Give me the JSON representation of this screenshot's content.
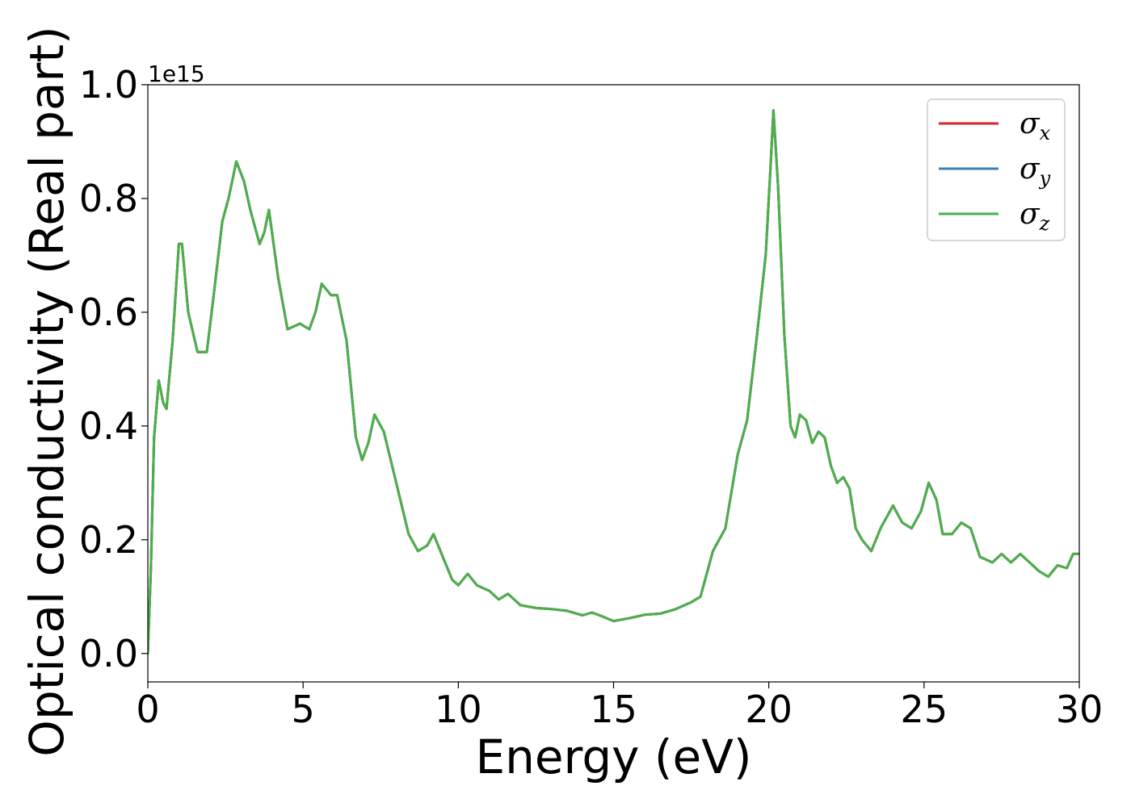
{
  "chart_data": {
    "type": "line",
    "title": "",
    "xlabel": "Energy (eV)",
    "ylabel": "Optical conductivity (Real part)",
    "y_offset_label": "1e15",
    "xlim": [
      0,
      30
    ],
    "ylim": [
      -0.05,
      1.0
    ],
    "x_ticks": [
      0,
      5,
      10,
      15,
      20,
      25,
      30
    ],
    "x_tick_labels": [
      "0",
      "5",
      "10",
      "15",
      "20",
      "25",
      "30"
    ],
    "y_ticks": [
      0.0,
      0.2,
      0.4,
      0.6,
      0.8,
      1.0
    ],
    "y_tick_labels": [
      "0.0",
      "0.2",
      "0.4",
      "0.6",
      "0.8",
      "1.0"
    ],
    "grid": false,
    "legend_position": "top-right",
    "x": [
      0,
      0.1,
      0.2,
      0.35,
      0.5,
      0.6,
      0.8,
      1.0,
      1.1,
      1.3,
      1.6,
      1.9,
      2.1,
      2.4,
      2.6,
      2.85,
      3.1,
      3.3,
      3.6,
      3.75,
      3.9,
      4.2,
      4.5,
      4.9,
      5.2,
      5.4,
      5.6,
      5.9,
      6.1,
      6.4,
      6.7,
      6.9,
      7.1,
      7.3,
      7.6,
      8.0,
      8.4,
      8.7,
      9.0,
      9.2,
      9.5,
      9.8,
      10.0,
      10.3,
      10.6,
      11.0,
      11.3,
      11.6,
      12.0,
      12.5,
      13.0,
      13.5,
      14.0,
      14.3,
      14.6,
      15.0,
      15.5,
      16.0,
      16.5,
      17.0,
      17.5,
      17.8,
      18.2,
      18.6,
      19.0,
      19.3,
      19.6,
      19.9,
      20.05,
      20.15,
      20.3,
      20.5,
      20.7,
      20.85,
      21.0,
      21.2,
      21.4,
      21.6,
      21.8,
      22.0,
      22.2,
      22.4,
      22.6,
      22.8,
      23.0,
      23.3,
      23.6,
      24.0,
      24.3,
      24.6,
      24.9,
      25.15,
      25.4,
      25.6,
      25.9,
      26.2,
      26.5,
      26.8,
      27.2,
      27.5,
      27.8,
      28.1,
      28.4,
      28.7,
      29.0,
      29.3,
      29.6,
      29.8,
      30.0
    ],
    "series": [
      {
        "name": "σx",
        "color": "#d62728",
        "values": [
          0.0,
          0.15,
          0.38,
          0.48,
          0.44,
          0.43,
          0.55,
          0.72,
          0.72,
          0.6,
          0.53,
          0.53,
          0.62,
          0.76,
          0.8,
          0.865,
          0.83,
          0.78,
          0.72,
          0.74,
          0.78,
          0.66,
          0.57,
          0.58,
          0.57,
          0.6,
          0.65,
          0.63,
          0.63,
          0.55,
          0.38,
          0.34,
          0.37,
          0.42,
          0.39,
          0.3,
          0.21,
          0.18,
          0.19,
          0.21,
          0.17,
          0.13,
          0.12,
          0.14,
          0.12,
          0.11,
          0.095,
          0.105,
          0.085,
          0.08,
          0.078,
          0.075,
          0.067,
          0.072,
          0.066,
          0.057,
          0.062,
          0.068,
          0.07,
          0.078,
          0.09,
          0.1,
          0.18,
          0.22,
          0.35,
          0.41,
          0.55,
          0.7,
          0.85,
          0.955,
          0.82,
          0.56,
          0.4,
          0.38,
          0.42,
          0.41,
          0.37,
          0.39,
          0.38,
          0.33,
          0.3,
          0.31,
          0.29,
          0.22,
          0.2,
          0.18,
          0.22,
          0.26,
          0.23,
          0.22,
          0.25,
          0.3,
          0.27,
          0.21,
          0.21,
          0.23,
          0.22,
          0.17,
          0.16,
          0.175,
          0.16,
          0.175,
          0.16,
          0.145,
          0.135,
          0.155,
          0.15,
          0.175,
          0.175
        ]
      },
      {
        "name": "σy",
        "color": "#377eb8",
        "values": [
          0.0,
          0.15,
          0.38,
          0.48,
          0.44,
          0.43,
          0.55,
          0.72,
          0.72,
          0.6,
          0.53,
          0.53,
          0.62,
          0.76,
          0.8,
          0.865,
          0.83,
          0.78,
          0.72,
          0.74,
          0.78,
          0.66,
          0.57,
          0.58,
          0.57,
          0.6,
          0.65,
          0.63,
          0.63,
          0.55,
          0.38,
          0.34,
          0.37,
          0.42,
          0.39,
          0.3,
          0.21,
          0.18,
          0.19,
          0.21,
          0.17,
          0.13,
          0.12,
          0.14,
          0.12,
          0.11,
          0.095,
          0.105,
          0.085,
          0.08,
          0.078,
          0.075,
          0.067,
          0.072,
          0.066,
          0.057,
          0.062,
          0.068,
          0.07,
          0.078,
          0.09,
          0.1,
          0.18,
          0.22,
          0.35,
          0.41,
          0.55,
          0.7,
          0.85,
          0.955,
          0.82,
          0.56,
          0.4,
          0.38,
          0.42,
          0.41,
          0.37,
          0.39,
          0.38,
          0.33,
          0.3,
          0.31,
          0.29,
          0.22,
          0.2,
          0.18,
          0.22,
          0.26,
          0.23,
          0.22,
          0.25,
          0.3,
          0.27,
          0.21,
          0.21,
          0.23,
          0.22,
          0.17,
          0.16,
          0.175,
          0.16,
          0.175,
          0.16,
          0.145,
          0.135,
          0.155,
          0.15,
          0.175,
          0.175
        ]
      },
      {
        "name": "σz",
        "color": "#4daf4a",
        "values": [
          0.0,
          0.15,
          0.38,
          0.48,
          0.44,
          0.43,
          0.55,
          0.72,
          0.72,
          0.6,
          0.53,
          0.53,
          0.62,
          0.76,
          0.8,
          0.865,
          0.83,
          0.78,
          0.72,
          0.74,
          0.78,
          0.66,
          0.57,
          0.58,
          0.57,
          0.6,
          0.65,
          0.63,
          0.63,
          0.55,
          0.38,
          0.34,
          0.37,
          0.42,
          0.39,
          0.3,
          0.21,
          0.18,
          0.19,
          0.21,
          0.17,
          0.13,
          0.12,
          0.14,
          0.12,
          0.11,
          0.095,
          0.105,
          0.085,
          0.08,
          0.078,
          0.075,
          0.067,
          0.072,
          0.066,
          0.057,
          0.062,
          0.068,
          0.07,
          0.078,
          0.09,
          0.1,
          0.18,
          0.22,
          0.35,
          0.41,
          0.55,
          0.7,
          0.85,
          0.955,
          0.82,
          0.56,
          0.4,
          0.38,
          0.42,
          0.41,
          0.37,
          0.39,
          0.38,
          0.33,
          0.3,
          0.31,
          0.29,
          0.22,
          0.2,
          0.18,
          0.22,
          0.26,
          0.23,
          0.22,
          0.25,
          0.3,
          0.27,
          0.21,
          0.21,
          0.23,
          0.22,
          0.17,
          0.16,
          0.175,
          0.16,
          0.175,
          0.16,
          0.145,
          0.135,
          0.155,
          0.15,
          0.175,
          0.175
        ]
      }
    ],
    "legend": {
      "entries": [
        {
          "symbol": "σ",
          "sub": "x",
          "color": "#d62728"
        },
        {
          "symbol": "σ",
          "sub": "y",
          "color": "#377eb8"
        },
        {
          "symbol": "σ",
          "sub": "z",
          "color": "#4daf4a"
        }
      ]
    }
  }
}
